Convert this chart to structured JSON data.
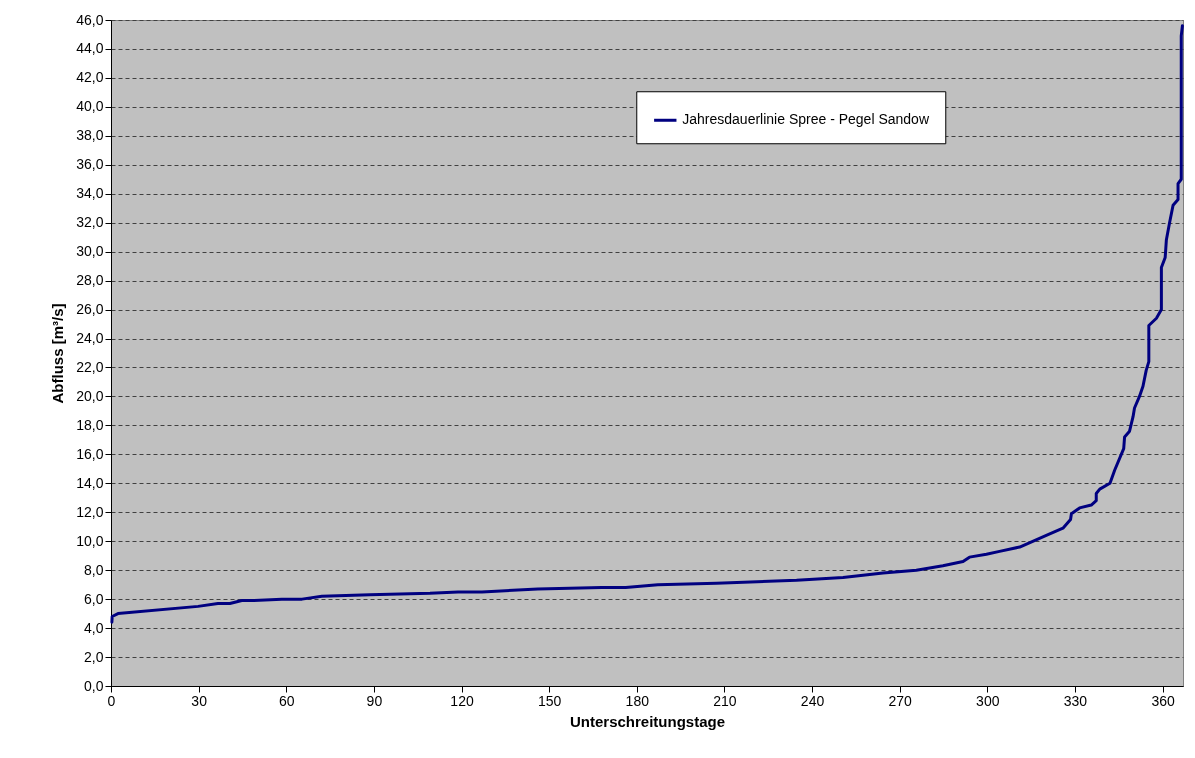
{
  "chart_data": {
    "type": "line",
    "xlabel": "Unterschreitungstage",
    "ylabel": "Abfluss [m³/s]",
    "xlim": [
      0,
      367
    ],
    "xticks": [
      0,
      30,
      60,
      90,
      120,
      150,
      180,
      210,
      240,
      270,
      300,
      330,
      360
    ],
    "ylim": [
      0,
      46
    ],
    "yticks": [
      {
        "value": 0,
        "label": "0,0"
      },
      {
        "value": 2,
        "label": "2,0"
      },
      {
        "value": 4,
        "label": "4,0"
      },
      {
        "value": 6,
        "label": "6,0"
      },
      {
        "value": 8,
        "label": "8,0"
      },
      {
        "value": 10,
        "label": "10,0"
      },
      {
        "value": 12,
        "label": "12,0"
      },
      {
        "value": 14,
        "label": "14,0"
      },
      {
        "value": 16,
        "label": "16,0"
      },
      {
        "value": 18,
        "label": "18,0"
      },
      {
        "value": 20,
        "label": "20,0"
      },
      {
        "value": 22,
        "label": "22,0"
      },
      {
        "value": 24,
        "label": "24,0"
      },
      {
        "value": 26,
        "label": "26,0"
      },
      {
        "value": 28,
        "label": "28,0"
      },
      {
        "value": 30,
        "label": "30,0"
      },
      {
        "value": 32,
        "label": "32,0"
      },
      {
        "value": 34,
        "label": "34,0"
      },
      {
        "value": 36,
        "label": "36,0"
      },
      {
        "value": 38,
        "label": "38,0"
      },
      {
        "value": 40,
        "label": "40,0"
      },
      {
        "value": 42,
        "label": "42,0"
      },
      {
        "value": 44,
        "label": "44,0"
      },
      {
        "value": 46,
        "label": "46,0"
      }
    ],
    "grid": "y",
    "legend": "top right",
    "line_style": "solid",
    "series": [
      {
        "name": "Jahresdauerlinie Spree - Pegel Sandow",
        "color": "#000080",
        "x": [
          0.3,
          0.4,
          2.4,
          29.8,
          36.6,
          40.7,
          44.8,
          48.9,
          58.5,
          65.4,
          72.2,
          88.6,
          109.2,
          118.8,
          127,
          146.1,
          168,
          176.2,
          187.2,
          207.3,
          234.7,
          250.6,
          264.3,
          275.7,
          284.8,
          291.7,
          293.9,
          299.7,
          304.2,
          311.1,
          320.2,
          325.9,
          328.5,
          328.8,
          331.6,
          335.6,
          337.3,
          337.3,
          338.5,
          342,
          343.6,
          346.7,
          347,
          348.7,
          349.9,
          350.4,
          352.1,
          353.3,
          354.4,
          355.3,
          355.3,
          357.9,
          359.6,
          359.6,
          360.9,
          361.3,
          362.4,
          363.6,
          365.3,
          365.3,
          366.4,
          366.4,
          366.8
        ],
        "values": [
          4.4,
          4.8,
          5.0,
          5.5,
          5.7,
          5.7,
          5.9,
          5.9,
          6.0,
          6.0,
          6.2,
          6.3,
          6.4,
          6.5,
          6.5,
          6.7,
          6.8,
          6.8,
          7.0,
          7.1,
          7.3,
          7.5,
          7.8,
          8.0,
          8.3,
          8.6,
          8.9,
          9.1,
          9.3,
          9.6,
          10.4,
          10.9,
          11.5,
          11.9,
          12.3,
          12.5,
          12.8,
          13.3,
          13.6,
          14.0,
          14.9,
          16.4,
          17.2,
          17.6,
          18.6,
          19.2,
          20.0,
          20.7,
          21.8,
          22.4,
          24.9,
          25.4,
          26.0,
          28.9,
          29.6,
          30.8,
          32.0,
          33.2,
          33.6,
          34.7,
          35.0,
          44.9,
          45.6
        ]
      }
    ]
  }
}
